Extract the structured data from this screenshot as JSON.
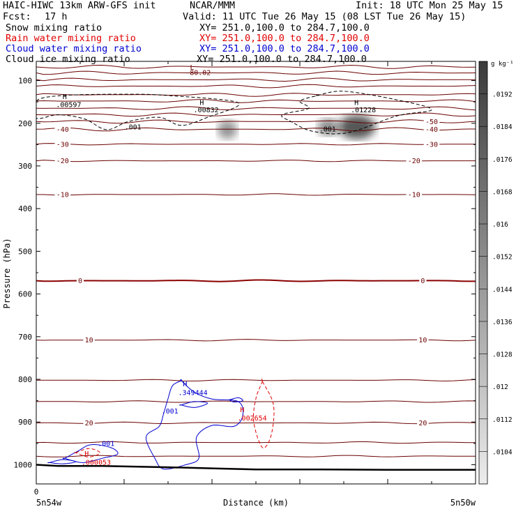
{
  "header": {
    "model": "HAIC-HIWC 13km ARW-GFS init",
    "org": "NCAR/MMM",
    "init": "Init: 18 UTC Mon 25 May 15",
    "fcst_label": "Fcst:",
    "fcst_value": "17 h",
    "valid": "Valid: 11 UTC Tue 26 May 15 (08 LST Tue 26 May 15)"
  },
  "fields": [
    {
      "name": "Snow mixing ratio",
      "xy": "XY= 251.0,100.0 to 284.7,100.0",
      "color": "#000000"
    },
    {
      "name": "Rain water mixing ratio",
      "xy": "XY= 251.0,100.0 to 284.7,100.0",
      "color": "#e00000"
    },
    {
      "name": "Cloud water mixing ratio",
      "xy": "XY= 251.0,100.0 to 284.7,100.0",
      "color": "#0000d0"
    },
    {
      "name": "Cloud ice mixing ratio",
      "xy": "XY= 251.0,100.0 to 284.7,100.0",
      "color": "#000000"
    }
  ],
  "colors": {
    "temperature_contour": "#6b0000",
    "zero_isotherm": "#8b0000",
    "rain": "#e00000",
    "cloud_water": "#0000d0",
    "snow": "#000000",
    "terrain": "#000000"
  },
  "chart_data": {
    "type": "contour-cross-section",
    "ylabel": "Pressure (hPa)",
    "xlabel": "Distance (km)",
    "x_start_tick": "0",
    "x_left_label": "5n54w",
    "x_right_label": "5n50w",
    "y_ticks": [
      100,
      200,
      300,
      400,
      500,
      600,
      700,
      800,
      900,
      1000
    ],
    "ylim": [
      1045,
      55
    ],
    "xlim": [
      0,
      10
    ],
    "colorbar": {
      "unit": "g kg⁻¹",
      "labels": [
        ".0192",
        ".0184",
        ".0176",
        ".0168",
        ".016",
        ".0152",
        ".0144",
        ".0136",
        ".0128",
        ".012",
        ".0112",
        ".0104"
      ],
      "light": "#ececec",
      "dark": "#3a3a3a"
    },
    "temperature_levels": [
      {
        "p": 68
      },
      {
        "p": 82
      },
      {
        "p": 98
      },
      {
        "p": 113
      },
      {
        "p": 133
      },
      {
        "p": 148
      },
      {
        "p": 165
      },
      {
        "p": 180
      },
      {
        "p": 196,
        "lr": "-50"
      },
      {
        "p": 214,
        "ll": "-40",
        "lr": "-40"
      },
      {
        "p": 249,
        "ll": "-30",
        "lr": "-30"
      },
      {
        "p": 288,
        "ll": "-20",
        "lr": "-20"
      },
      {
        "p": 367,
        "ll": "-10",
        "lr": "-10"
      },
      {
        "p": 569,
        "ll": "0",
        "lr": "0",
        "zero": true
      },
      {
        "p": 708,
        "ll": "10",
        "lr": "10"
      },
      {
        "p": 802
      },
      {
        "p": 852
      },
      {
        "p": 902,
        "ll": "20",
        "lr": "20"
      },
      {
        "p": 948
      },
      {
        "p": 980
      }
    ],
    "labels": [
      {
        "text": "L",
        "x": 3.5,
        "y": 75,
        "color": "#6b0000"
      },
      {
        "text": "-80.02",
        "x": 3.4,
        "y": 87,
        "color": "#6b0000"
      },
      {
        "text": "H",
        "x": 0.6,
        "y": 143,
        "color": "#000000"
      },
      {
        "text": ".00597",
        "x": 0.45,
        "y": 162,
        "color": "#000000"
      },
      {
        "text": "H",
        "x": 3.72,
        "y": 157,
        "color": "#000000"
      },
      {
        "text": ".00832",
        "x": 3.58,
        "y": 174,
        "color": "#000000"
      },
      {
        "text": "H",
        "x": 7.24,
        "y": 157,
        "color": "#000000"
      },
      {
        "text": ".01228",
        "x": 7.16,
        "y": 174,
        "color": "#000000"
      },
      {
        "text": ".001",
        "x": 2.01,
        "y": 214,
        "color": "#000000"
      },
      {
        "text": ".001",
        "x": 6.44,
        "y": 219,
        "color": "#000000"
      },
      {
        "text": "H",
        "x": 3.34,
        "y": 816,
        "color": "#0000d0"
      },
      {
        "text": ".349444",
        "x": 3.23,
        "y": 837,
        "color": "#0000d0"
      },
      {
        "text": ".001",
        "x": 2.85,
        "y": 880,
        "color": "#0000d0"
      },
      {
        "text": ".001",
        "x": 1.4,
        "y": 956,
        "color": "#0000d0"
      },
      {
        "text": "H",
        "x": 4.64,
        "y": 877,
        "color": "#e00000"
      },
      {
        "text": ".002654",
        "x": 4.58,
        "y": 896,
        "color": "#e00000"
      },
      {
        "text": "H",
        "x": 1.1,
        "y": 980,
        "color": "#e00000"
      },
      {
        "text": ".000053",
        "x": 1.03,
        "y": 1000,
        "color": "#e00000"
      }
    ],
    "snow_contours": [
      [
        [
          0,
          148
        ],
        [
          0.6,
          135
        ],
        [
          2.0,
          132
        ],
        [
          3.0,
          135
        ],
        [
          4.6,
          152
        ],
        [
          3.9,
          186
        ],
        [
          3.3,
          205
        ],
        [
          2.8,
          186
        ],
        [
          2.1,
          196
        ],
        [
          1.6,
          215
        ],
        [
          1.1,
          190
        ],
        [
          0.5,
          180
        ],
        [
          0,
          188
        ]
      ],
      [
        [
          6.4,
          135
        ],
        [
          7.0,
          125
        ],
        [
          8.2,
          145
        ],
        [
          9.0,
          168
        ],
        [
          8.2,
          183
        ],
        [
          7.1,
          222
        ],
        [
          6.3,
          219
        ],
        [
          5.8,
          196
        ],
        [
          5.6,
          180
        ],
        [
          6.2,
          165
        ],
        [
          6.0,
          148
        ],
        [
          6.4,
          135
        ]
      ]
    ],
    "cloud_water_contours": [
      [
        [
          3.3,
          803
        ],
        [
          3.6,
          830
        ],
        [
          4.0,
          846
        ],
        [
          4.6,
          852
        ],
        [
          4.7,
          885
        ],
        [
          4.5,
          910
        ],
        [
          4.0,
          908
        ],
        [
          3.65,
          935
        ],
        [
          3.7,
          985
        ],
        [
          3.4,
          1000
        ],
        [
          2.9,
          1010
        ],
        [
          2.7,
          985
        ],
        [
          2.5,
          935
        ],
        [
          2.8,
          910
        ],
        [
          2.9,
          880
        ],
        [
          3.0,
          845
        ],
        [
          3.1,
          815
        ],
        [
          3.3,
          803
        ]
      ],
      [
        [
          3.3,
          860
        ],
        [
          3.6,
          852
        ],
        [
          3.9,
          856
        ],
        [
          3.6,
          866
        ],
        [
          3.3,
          860
        ]
      ],
      [
        [
          4.4,
          848
        ],
        [
          4.6,
          843
        ],
        [
          4.7,
          850
        ],
        [
          4.5,
          853
        ],
        [
          4.4,
          848
        ]
      ],
      [
        [
          0.65,
          985
        ],
        [
          0.95,
          968
        ],
        [
          1.25,
          953
        ],
        [
          1.7,
          960
        ],
        [
          1.85,
          975
        ],
        [
          1.5,
          985
        ],
        [
          1.05,
          995
        ],
        [
          0.65,
          985
        ]
      ],
      [
        [
          0.3,
          995
        ],
        [
          0.6,
          988
        ],
        [
          0.9,
          993
        ],
        [
          0.6,
          998
        ],
        [
          0.3,
          995
        ]
      ]
    ],
    "rain_contours": [
      [
        [
          5.15,
          805
        ],
        [
          5.4,
          860
        ],
        [
          5.35,
          930
        ],
        [
          5.15,
          960
        ],
        [
          4.95,
          900
        ],
        [
          5.0,
          845
        ],
        [
          5.15,
          805
        ]
      ],
      [
        [
          0.9,
          972
        ],
        [
          1.2,
          962
        ],
        [
          1.45,
          972
        ],
        [
          1.2,
          982
        ],
        [
          0.9,
          972
        ]
      ]
    ],
    "ice_blobs": [
      {
        "x": 4.35,
        "y": 215,
        "rx": 0.22,
        "ry": 22,
        "alpha": 0.55
      },
      {
        "x": 6.65,
        "y": 209,
        "rx": 0.25,
        "ry": 20,
        "alpha": 0.6
      },
      {
        "x": 7.3,
        "y": 209,
        "rx": 0.42,
        "ry": 28,
        "alpha": 0.85
      }
    ],
    "terrain": [
      [
        0,
        1000
      ],
      [
        0.5,
        1003
      ],
      [
        1.5,
        1003
      ],
      [
        3.0,
        1006
      ],
      [
        4.2,
        1009
      ],
      [
        5.0,
        1011
      ],
      [
        6.5,
        1011
      ],
      [
        8.0,
        1012
      ],
      [
        9.0,
        1012
      ],
      [
        10,
        1012
      ]
    ]
  }
}
